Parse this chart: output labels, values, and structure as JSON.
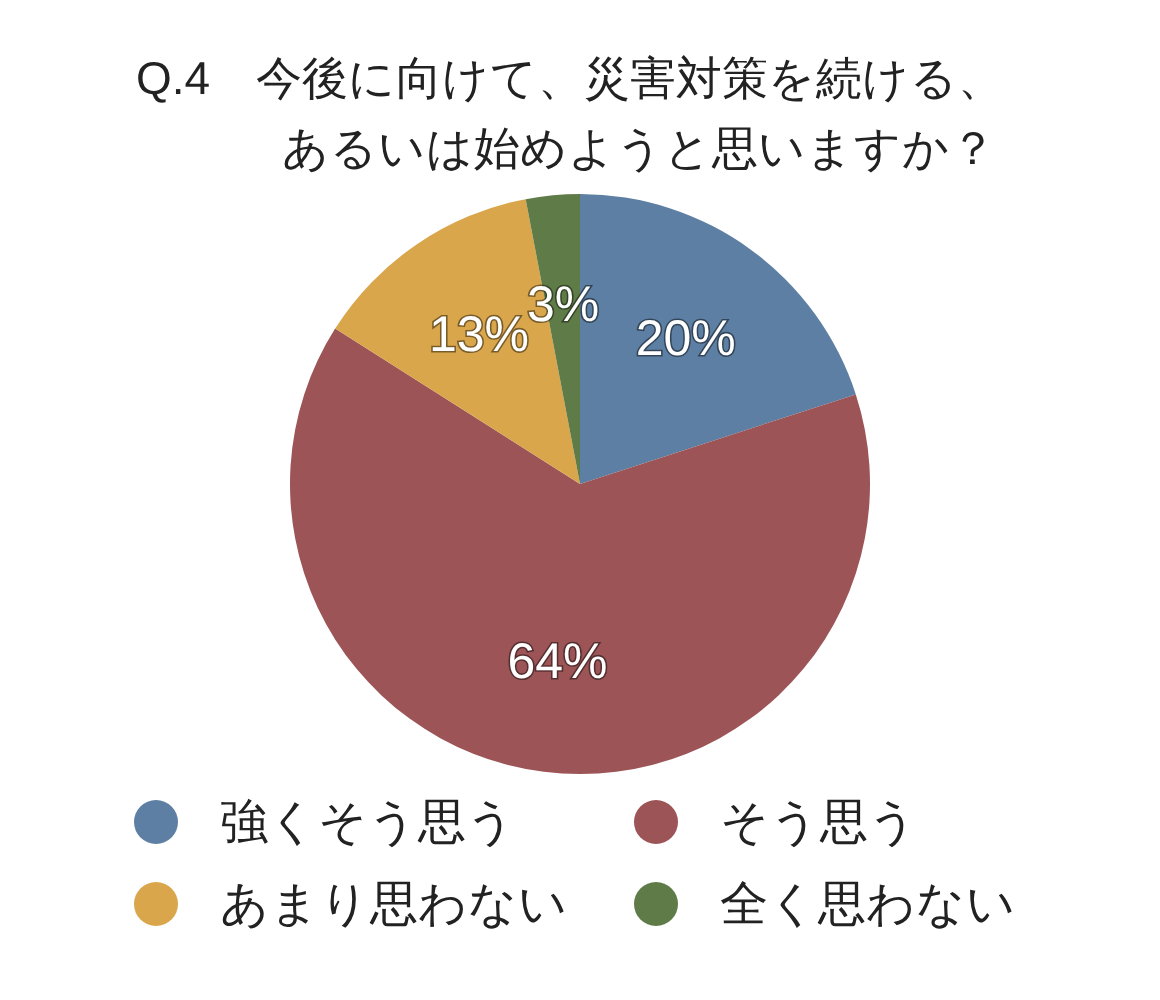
{
  "chart_data": {
    "type": "pie",
    "title": "Q.4　今後に向けて、災害対策を続ける、あるいは始めようと思いますか？",
    "categories": [
      "強くそう思う",
      "そう思う",
      "あまり思わない",
      "全く思わない"
    ],
    "values": [
      20,
      64,
      13,
      3
    ],
    "colors": [
      "#5d7fa3",
      "#9c5457",
      "#d9a64c",
      "#5f7c48"
    ],
    "value_labels": [
      "20%",
      "64%",
      "13%",
      "3%"
    ],
    "legend": "bottom"
  }
}
